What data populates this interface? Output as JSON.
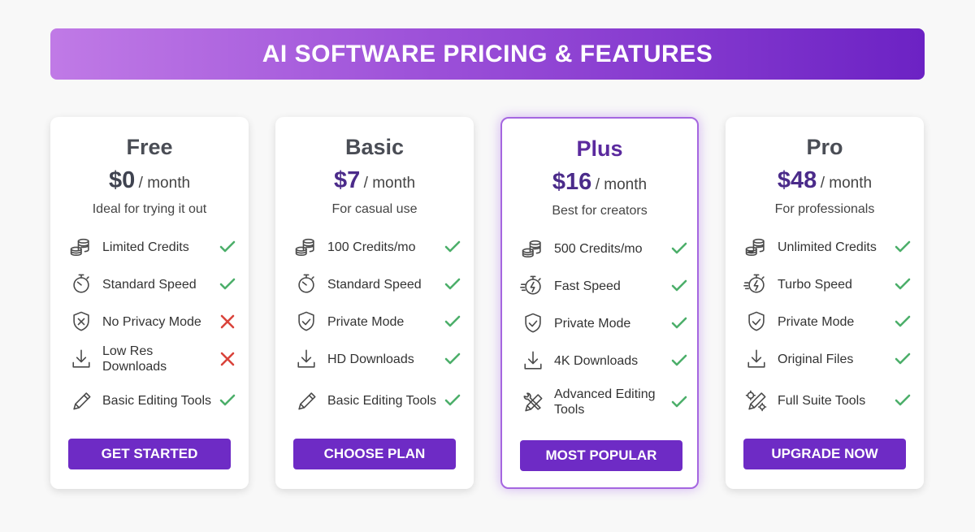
{
  "title": "AI SOFTWARE PRICING & FEATURES",
  "colors": {
    "accent": "#6e2bc5",
    "check": "#4caf6a",
    "cross": "#d9433b"
  },
  "plans": [
    {
      "name": "Free",
      "price": "$0",
      "period": "/ month",
      "tagline": "Ideal for trying it out",
      "button": "GET STARTED",
      "highlight": false,
      "features": [
        {
          "label": "Limited Credits",
          "icon": "coins",
          "status": "check"
        },
        {
          "label": "Standard Speed",
          "icon": "stopwatch",
          "status": "check"
        },
        {
          "label": "No Privacy Mode",
          "icon": "shield-x",
          "status": "cross"
        },
        {
          "label": "Low Res Downloads",
          "icon": "download",
          "status": "cross"
        },
        {
          "label": "Basic Editing Tools",
          "icon": "pencil",
          "status": "check"
        }
      ]
    },
    {
      "name": "Basic",
      "price": "$7",
      "period": "/ month",
      "tagline": "For casual use",
      "button": "CHOOSE PLAN",
      "highlight": false,
      "features": [
        {
          "label": "100 Credits/mo",
          "icon": "coins",
          "status": "check"
        },
        {
          "label": "Standard Speed",
          "icon": "stopwatch",
          "status": "check"
        },
        {
          "label": "Private Mode",
          "icon": "shield-check",
          "status": "check"
        },
        {
          "label": "HD Downloads",
          "icon": "download",
          "status": "check"
        },
        {
          "label": "Basic Editing Tools",
          "icon": "pencil",
          "status": "check"
        }
      ]
    },
    {
      "name": "Plus",
      "price": "$16",
      "period": "/ month",
      "tagline": "Best for creators",
      "button": "MOST POPULAR",
      "highlight": true,
      "features": [
        {
          "label": "500 Credits/mo",
          "icon": "coins",
          "status": "check"
        },
        {
          "label": "Fast Speed",
          "icon": "fast-stopwatch",
          "status": "check"
        },
        {
          "label": "Private Mode",
          "icon": "shield-check",
          "status": "check"
        },
        {
          "label": "4K Downloads",
          "icon": "download",
          "status": "check"
        },
        {
          "label": "Advanced Editing Tools",
          "icon": "tools",
          "status": "check"
        }
      ]
    },
    {
      "name": "Pro",
      "price": "$48",
      "period": "/ month",
      "tagline": "For professionals",
      "button": "UPGRADE NOW",
      "highlight": false,
      "features": [
        {
          "label": "Unlimited Credits",
          "icon": "infinite-coins",
          "status": "check"
        },
        {
          "label": "Turbo Speed",
          "icon": "fast-stopwatch",
          "status": "check"
        },
        {
          "label": "Private Mode",
          "icon": "shield-check",
          "status": "check"
        },
        {
          "label": "Original Files",
          "icon": "download",
          "status": "check"
        },
        {
          "label": "Full Suite Tools",
          "icon": "tools-gear",
          "status": "check"
        }
      ]
    }
  ]
}
